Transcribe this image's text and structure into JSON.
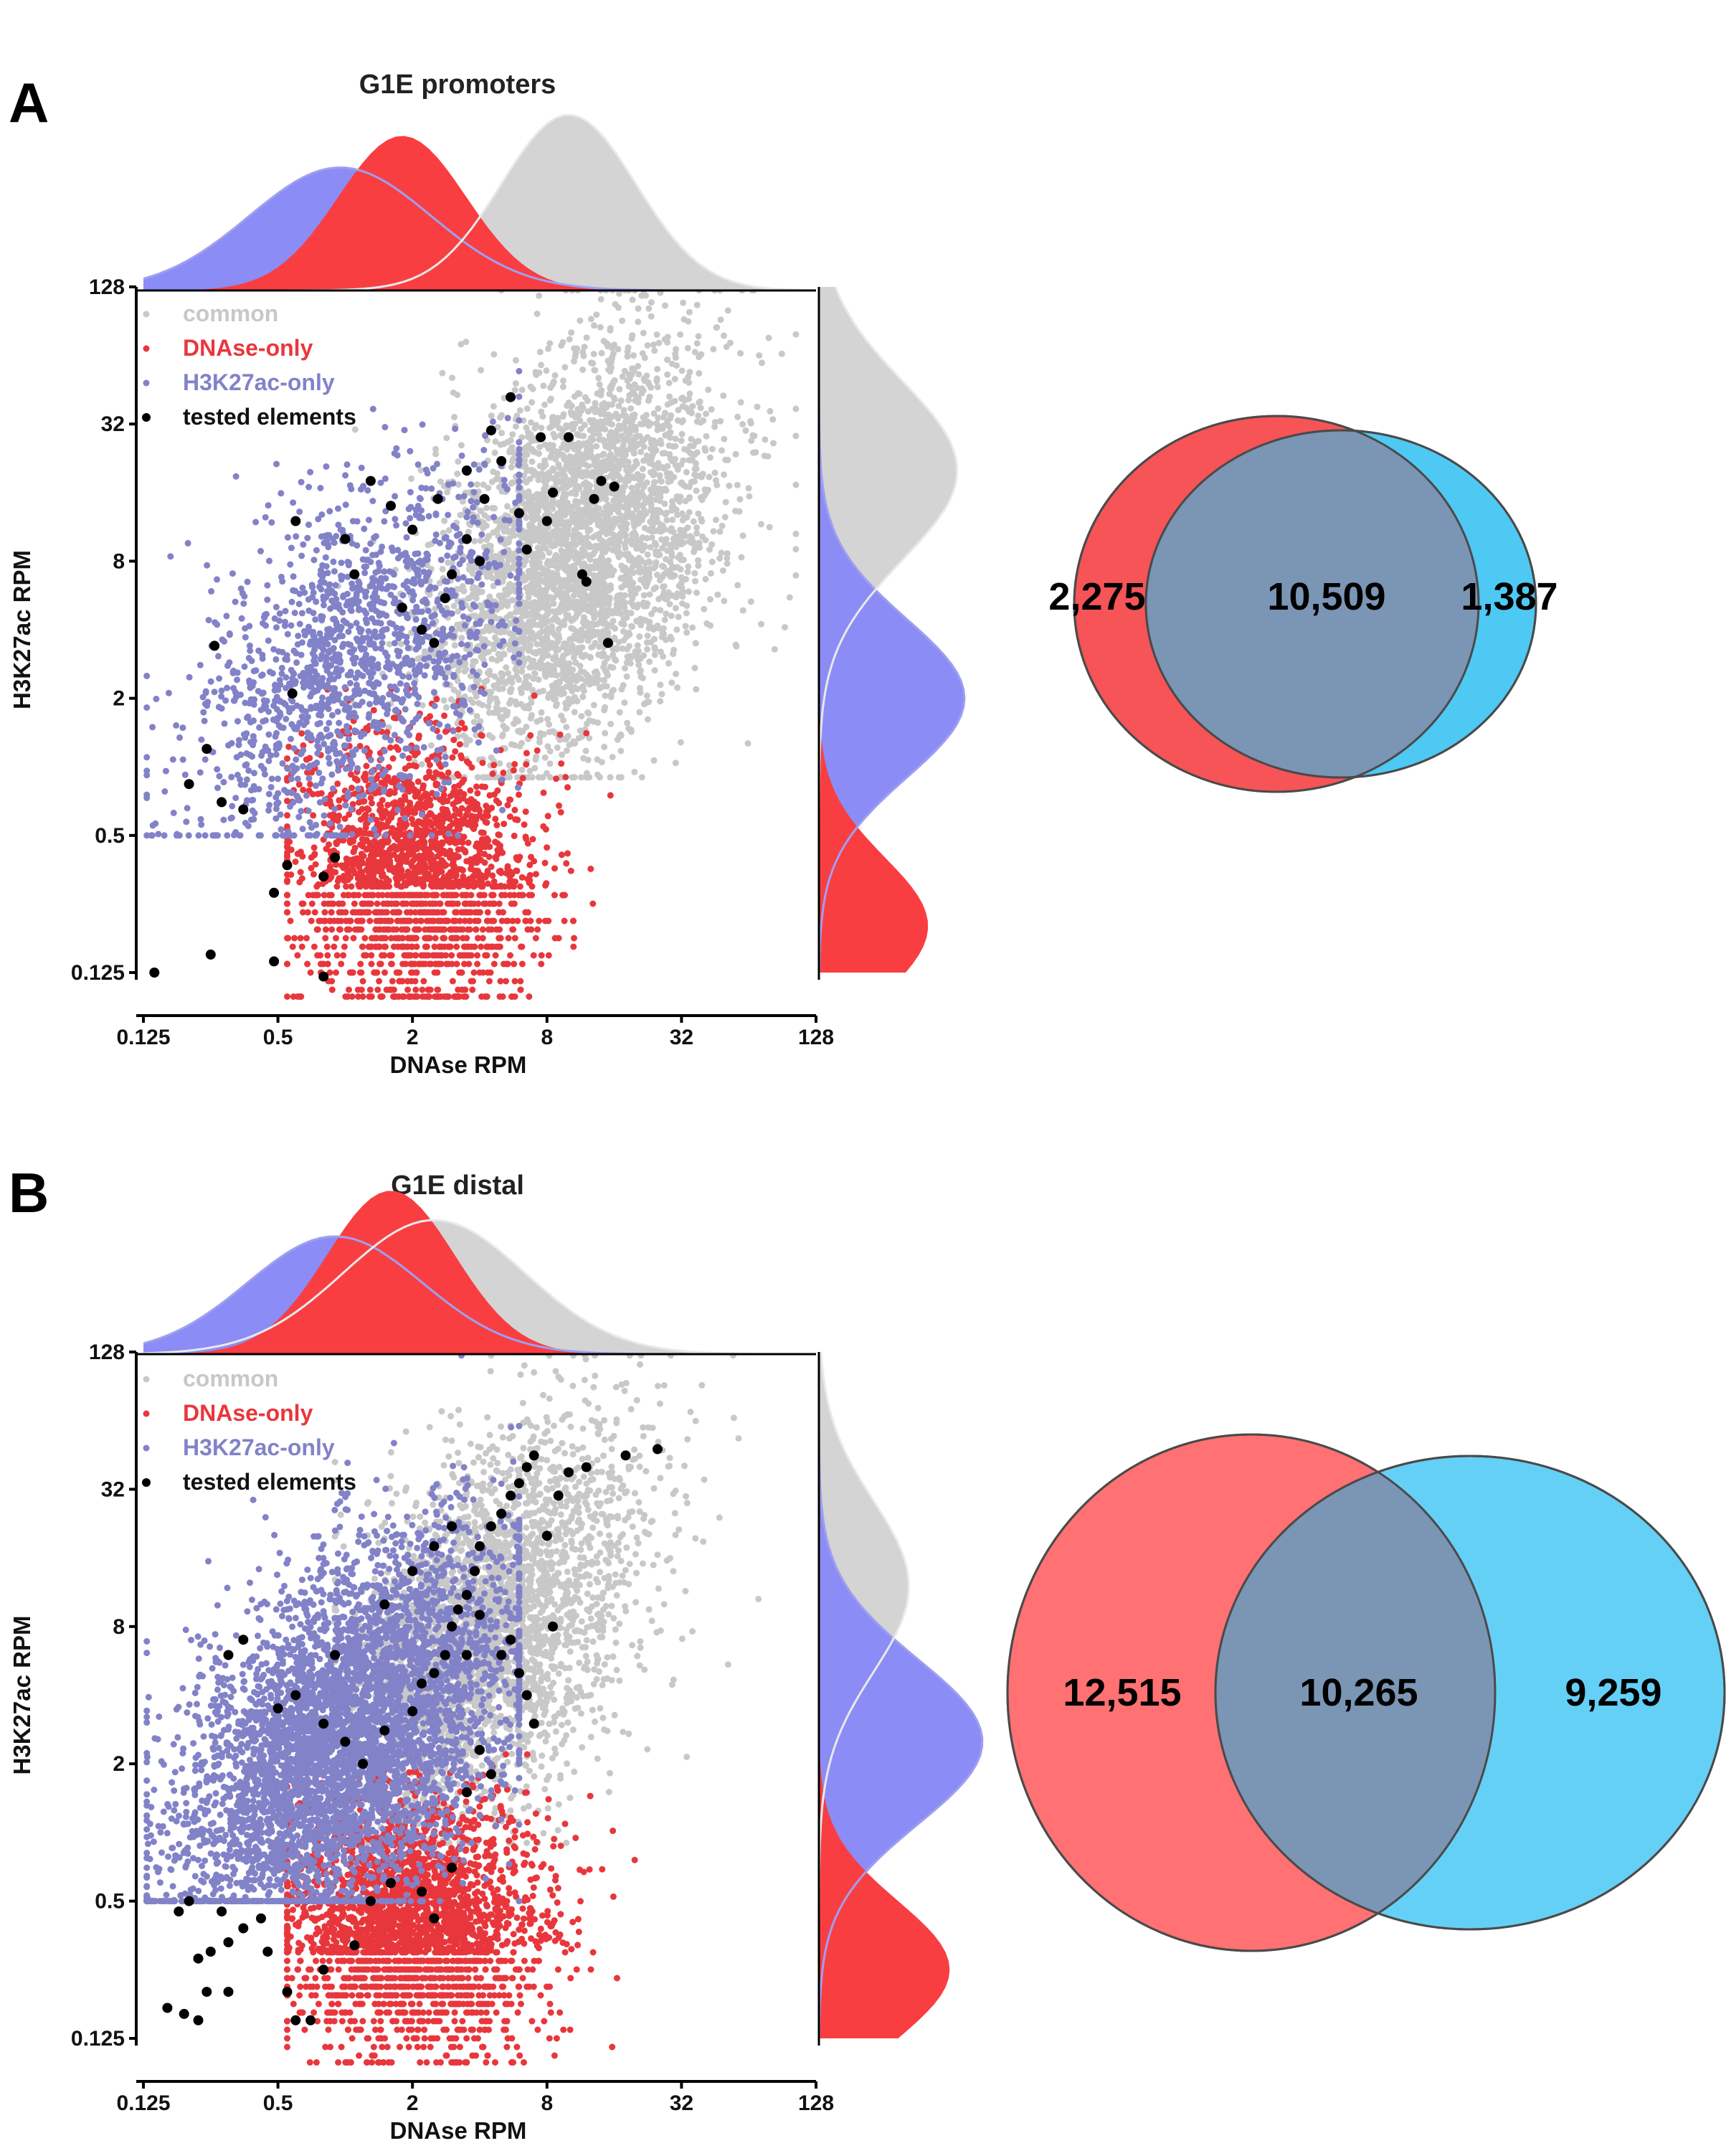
{
  "panels": [
    {
      "letter": "A",
      "title": "G1E promoters",
      "xlabel": "DNAse RPM",
      "ylabel": "H3K27ac RPM",
      "tick_labels": [
        "0.125",
        "0.5",
        "2",
        "8",
        "32",
        "128"
      ],
      "legend": [
        {
          "label": "common",
          "color": "#c8c8c8"
        },
        {
          "label": "DNAse-only",
          "color": "#e8373c"
        },
        {
          "label": "H3K27ac-only",
          "color": "#8282c8"
        },
        {
          "label": "tested elements",
          "color": "#000000"
        }
      ],
      "venn": {
        "left": "2,275",
        "overlap": "10,509",
        "right": "1,387"
      }
    },
    {
      "letter": "B",
      "title": "G1E distal",
      "xlabel": "DNAse RPM",
      "ylabel": "H3K27ac RPM",
      "tick_labels": [
        "0.125",
        "0.5",
        "2",
        "8",
        "32",
        "128"
      ],
      "legend": [
        {
          "label": "common",
          "color": "#c8c8c8"
        },
        {
          "label": "DNAse-only",
          "color": "#e8373c"
        },
        {
          "label": "H3K27ac-only",
          "color": "#8282c8"
        },
        {
          "label": "tested elements",
          "color": "#000000"
        }
      ],
      "venn": {
        "left": "12,515",
        "overlap": "10,265",
        "right": "9,259"
      }
    }
  ],
  "chart_data": [
    {
      "type": "scatter",
      "title": "G1E promoters",
      "xlabel": "DNAse RPM",
      "ylabel": "H3K27ac RPM",
      "xscale": "log2",
      "yscale": "log2",
      "xlim": [
        0.125,
        128
      ],
      "ylim": [
        0.125,
        128
      ],
      "xticks": [
        0.125,
        0.5,
        2,
        8,
        32,
        128
      ],
      "yticks": [
        0.125,
        0.5,
        2,
        8,
        32,
        128
      ],
      "legend_position": "top-left",
      "groups": [
        {
          "name": "common",
          "color": "#c8c8c8",
          "x_center": 11,
          "y_center": 9,
          "x_spread": 1.05,
          "y_spread": 1.35,
          "density_peak_x": 10,
          "density_peak_y": 20
        },
        {
          "name": "DNAse-only",
          "color": "#e8373c",
          "x_center": 2,
          "y_center": 0.35,
          "x_spread": 0.9,
          "y_spread": 0.95,
          "density_peak_x": 1.8,
          "density_peak_y": 0.3
        },
        {
          "name": "H3K27ac-only",
          "color": "#8282c8",
          "x_center": 1.1,
          "y_center": 3,
          "x_spread": 1.2,
          "y_spread": 1.2,
          "density_peak_x": 1.0,
          "density_peak_y": 2
        }
      ],
      "tested_elements": [
        [
          0.14,
          0.125
        ],
        [
          0.25,
          0.15
        ],
        [
          0.48,
          0.14
        ],
        [
          0.48,
          0.28
        ],
        [
          0.55,
          0.37
        ],
        [
          0.8,
          0.33
        ],
        [
          0.9,
          0.4
        ],
        [
          0.35,
          0.65
        ],
        [
          0.28,
          0.7
        ],
        [
          0.24,
          1.2
        ],
        [
          0.2,
          0.84
        ],
        [
          0.58,
          2.1
        ],
        [
          0.26,
          3.4
        ],
        [
          0.6,
          12
        ],
        [
          1.1,
          7
        ],
        [
          1.3,
          18
        ],
        [
          1.6,
          14
        ],
        [
          2.0,
          11
        ],
        [
          1.8,
          5
        ],
        [
          2.2,
          4
        ],
        [
          2.6,
          15
        ],
        [
          3.0,
          7
        ],
        [
          3.5,
          10
        ],
        [
          4.0,
          8
        ],
        [
          4.2,
          15
        ],
        [
          5.0,
          22
        ],
        [
          5.5,
          42
        ],
        [
          3.5,
          20
        ],
        [
          4.5,
          30
        ],
        [
          6.0,
          13
        ],
        [
          6.5,
          9
        ],
        [
          7.5,
          28
        ],
        [
          8.0,
          12
        ],
        [
          8.5,
          16
        ],
        [
          10.0,
          28
        ],
        [
          11.5,
          7
        ],
        [
          12.0,
          6.5
        ],
        [
          13.0,
          15
        ],
        [
          14.0,
          18
        ],
        [
          16.0,
          17
        ],
        [
          15.0,
          3.5
        ],
        [
          2.5,
          3.5
        ],
        [
          2.8,
          5.5
        ],
        [
          1.0,
          10
        ],
        [
          0.8,
          0.12
        ]
      ],
      "venn": {
        "left": 2275,
        "overlap": 10509,
        "right": 1387
      }
    },
    {
      "type": "scatter",
      "title": "G1E distal",
      "xlabel": "DNAse RPM",
      "ylabel": "H3K27ac RPM",
      "xscale": "log2",
      "yscale": "log2",
      "xlim": [
        0.125,
        128
      ],
      "ylim": [
        0.125,
        128
      ],
      "xticks": [
        0.125,
        0.5,
        2,
        8,
        32,
        128
      ],
      "yticks": [
        0.125,
        0.5,
        2,
        8,
        32,
        128
      ],
      "legend_position": "top-left",
      "groups": [
        {
          "name": "common",
          "color": "#c8c8c8",
          "x_center": 4.5,
          "y_center": 8,
          "x_spread": 1.1,
          "y_spread": 1.3,
          "density_peak_x": 2.5,
          "density_peak_y": 12
        },
        {
          "name": "DNAse-only",
          "color": "#e8373c",
          "x_center": 2,
          "y_center": 0.4,
          "x_spread": 0.95,
          "y_spread": 0.9,
          "density_peak_x": 1.6,
          "density_peak_y": 0.3
        },
        {
          "name": "H3K27ac-only",
          "color": "#8282c8",
          "x_center": 1.0,
          "y_center": 2.6,
          "x_spread": 1.25,
          "y_spread": 1.25,
          "density_peak_x": 0.9,
          "density_peak_y": 2.5
        }
      ],
      "tested_elements": [
        [
          0.16,
          0.17
        ],
        [
          0.19,
          0.16
        ],
        [
          0.22,
          0.15
        ],
        [
          0.24,
          0.2
        ],
        [
          0.3,
          0.2
        ],
        [
          0.22,
          0.28
        ],
        [
          0.25,
          0.3
        ],
        [
          0.3,
          0.33
        ],
        [
          0.35,
          0.38
        ],
        [
          0.18,
          0.45
        ],
        [
          0.2,
          0.5
        ],
        [
          0.28,
          0.45
        ],
        [
          0.42,
          0.42
        ],
        [
          0.45,
          0.3
        ],
        [
          0.55,
          0.2
        ],
        [
          0.6,
          0.15
        ],
        [
          0.7,
          0.15
        ],
        [
          0.8,
          0.25
        ],
        [
          1.1,
          0.32
        ],
        [
          1.3,
          0.5
        ],
        [
          1.6,
          0.6
        ],
        [
          2.2,
          0.55
        ],
        [
          2.5,
          0.42
        ],
        [
          3.0,
          0.7
        ],
        [
          0.5,
          3.5
        ],
        [
          0.6,
          4
        ],
        [
          0.8,
          3
        ],
        [
          1.0,
          2.5
        ],
        [
          1.2,
          2
        ],
        [
          1.5,
          2.8
        ],
        [
          2.0,
          3.4
        ],
        [
          2.2,
          4.5
        ],
        [
          2.5,
          5
        ],
        [
          2.8,
          6
        ],
        [
          3.0,
          8
        ],
        [
          3.2,
          9.5
        ],
        [
          3.5,
          11
        ],
        [
          3.8,
          14
        ],
        [
          4.0,
          18
        ],
        [
          4.5,
          22
        ],
        [
          5.0,
          25
        ],
        [
          5.5,
          30
        ],
        [
          6.0,
          34
        ],
        [
          6.5,
          40
        ],
        [
          7.0,
          45
        ],
        [
          8.0,
          20
        ],
        [
          8.5,
          8
        ],
        [
          5.0,
          6
        ],
        [
          5.5,
          7
        ],
        [
          6.0,
          5
        ],
        [
          6.5,
          4
        ],
        [
          7.0,
          3
        ],
        [
          4.0,
          2.3
        ],
        [
          4.5,
          1.8
        ],
        [
          3.5,
          1.5
        ],
        [
          0.3,
          6
        ],
        [
          0.35,
          7
        ],
        [
          0.9,
          6
        ],
        [
          1.5,
          10
        ],
        [
          2.0,
          14
        ],
        [
          2.5,
          18
        ],
        [
          3.0,
          22
        ],
        [
          3.5,
          6
        ],
        [
          4.0,
          9
        ],
        [
          18,
          45
        ],
        [
          25,
          48
        ],
        [
          12,
          40
        ],
        [
          10,
          38
        ],
        [
          9,
          30
        ]
      ],
      "venn": {
        "left": 12515,
        "overlap": 10265,
        "right": 9259
      }
    }
  ]
}
